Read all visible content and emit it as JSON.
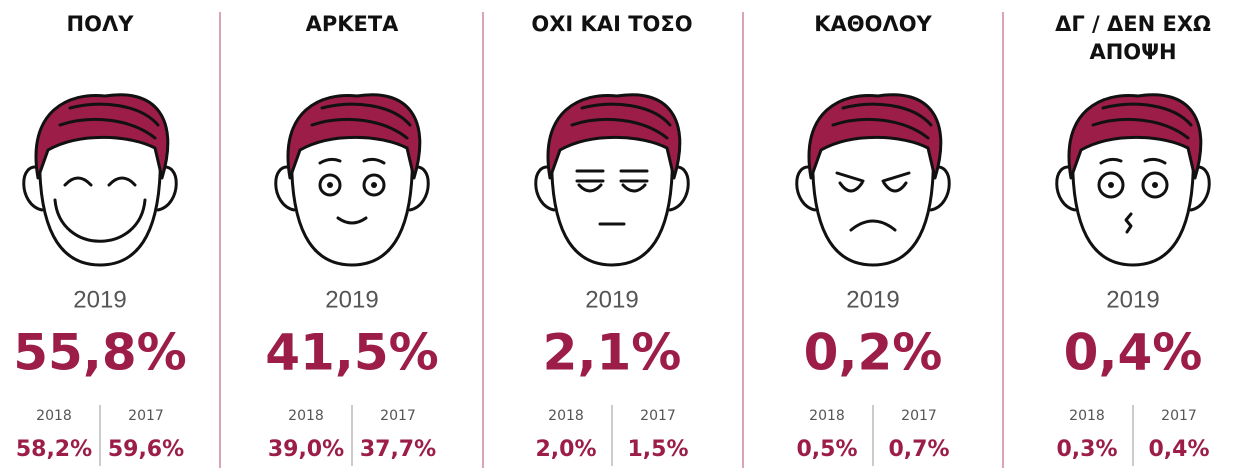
{
  "columns": [
    {
      "title": [
        "ΠΟΛΥ"
      ],
      "year": "2019",
      "value": "55,8%",
      "history": [
        {
          "year": "2018",
          "value": "58,2%"
        },
        {
          "year": "2017",
          "value": "59,6%"
        }
      ]
    },
    {
      "title": [
        "ΑΡΚΕΤΑ"
      ],
      "year": "2019",
      "value": "41,5%",
      "history": [
        {
          "year": "2018",
          "value": "39,0%"
        },
        {
          "year": "2017",
          "value": "37,7%"
        }
      ]
    },
    {
      "title": [
        "ΟΧΙ ΚΑΙ ΤΟΣΟ"
      ],
      "year": "2019",
      "value": "2,1%",
      "history": [
        {
          "year": "2018",
          "value": "2,0%"
        },
        {
          "year": "2017",
          "value": "1,5%"
        }
      ]
    },
    {
      "title": [
        "ΚΑΘΟΛΟΥ"
      ],
      "year": "2019",
      "value": "0,2%",
      "history": [
        {
          "year": "2018",
          "value": "0,5%"
        },
        {
          "year": "2017",
          "value": "0,7%"
        }
      ]
    },
    {
      "title": [
        "ΔΓ / ΔΕΝ ΕΧΩ",
        "ΑΠΟΨΗ"
      ],
      "year": "2019",
      "value": "0,4%",
      "history": [
        {
          "year": "2018",
          "value": "0,3%"
        },
        {
          "year": "2017",
          "value": "0,4%"
        }
      ]
    }
  ]
}
